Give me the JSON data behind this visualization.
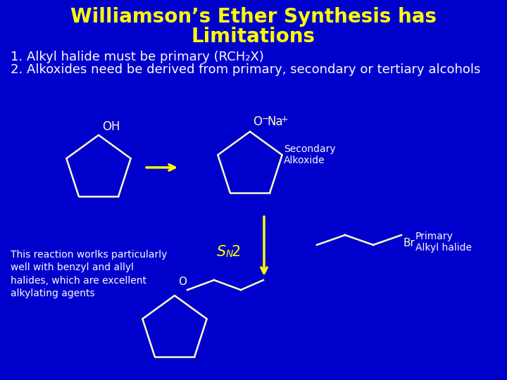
{
  "background_color": "#0000cc",
  "title_line1": "Williamson’s Ether Synthesis has",
  "title_line2": "Limitations",
  "title_color": "#ffff00",
  "title_fontsize": 20,
  "body_color": "#ffffff",
  "body_fontsize": 13,
  "yellow": "#ffff00",
  "white": "#ffffff",
  "point1": "1. Alkyl halide must be primary (RCH₂X)",
  "point2": "2. Alkoxides need be derived from primary, secondary or tertiary alcohols",
  "secondary_alkoxide": "Secondary\nAlkoxide",
  "primary_alkyl_halide": "Primary\nAlkyl halide",
  "br_label": "Br",
  "oh_label": "OH",
  "o_label": "O",
  "na_label": "Na",
  "note_text": "This reaction worlks particularly\nwell with benzyl and allyl\nhalides, which are excellent\nalkylating agents",
  "cyclopentane_lw": 1.8,
  "ring_color": "#ffffcc"
}
